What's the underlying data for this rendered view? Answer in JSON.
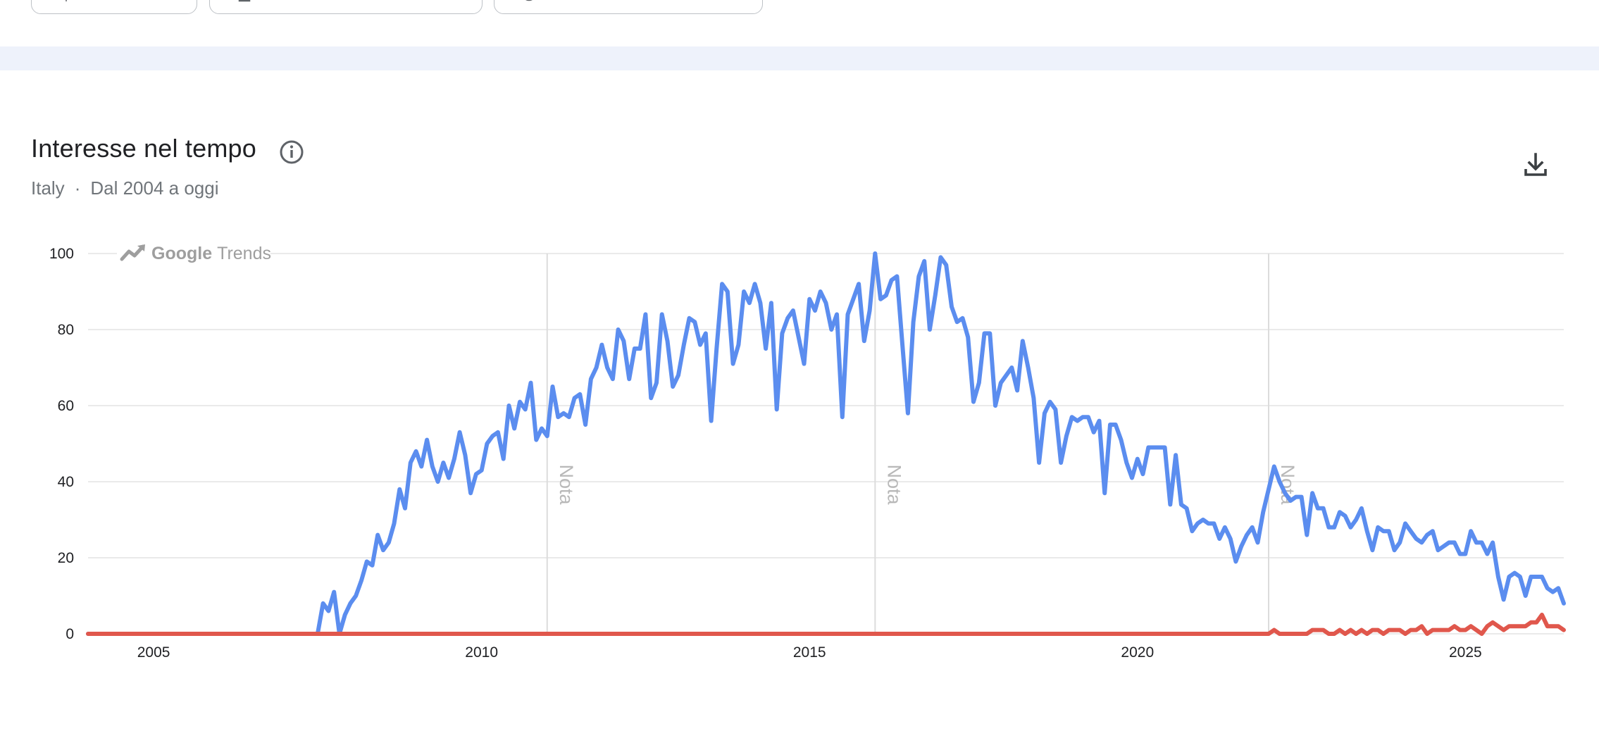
{
  "header": {
    "title": "Interesse nel tempo",
    "region": "Italy",
    "separator": "·",
    "period": "Dal 2004 a oggi"
  },
  "watermark": {
    "brand": "Google",
    "product": "Trends"
  },
  "icons": {
    "info": "info-icon",
    "download": "download-icon",
    "watermark": "trending-up-icon"
  },
  "colors": {
    "series_blue": "#5b8def",
    "series_red": "#e0574c",
    "band": "#eef2fb"
  },
  "chart_data": {
    "type": "line",
    "xlabel": "",
    "ylabel": "",
    "ylim": [
      0,
      100
    ],
    "xlim": [
      "2004-01",
      "2026-07"
    ],
    "yticks": [
      0,
      20,
      40,
      60,
      80,
      100
    ],
    "xticks": [
      "2005",
      "2010",
      "2015",
      "2020",
      "2025"
    ],
    "grid": true,
    "annotations": [
      {
        "text": "Nota",
        "x": "2011-01"
      },
      {
        "text": "Nota",
        "x": "2016-01"
      },
      {
        "text": "Nota",
        "x": "2022-01"
      }
    ],
    "series": [
      {
        "color": "#5b8def",
        "points": [
          [
            "2004-01",
            0
          ],
          [
            "2007-07",
            0
          ],
          [
            "2007-08",
            8
          ],
          [
            "2007-09",
            6
          ],
          [
            "2007-10",
            11
          ],
          [
            "2007-11",
            0
          ],
          [
            "2007-12",
            5
          ],
          [
            "2008-01",
            8
          ],
          [
            "2008-02",
            10
          ],
          [
            "2008-03",
            14
          ],
          [
            "2008-04",
            19
          ],
          [
            "2008-05",
            18
          ],
          [
            "2008-06",
            26
          ],
          [
            "2008-07",
            22
          ],
          [
            "2008-08",
            24
          ],
          [
            "2008-09",
            29
          ],
          [
            "2008-10",
            38
          ],
          [
            "2008-11",
            33
          ],
          [
            "2008-12",
            45
          ],
          [
            "2009-01",
            48
          ],
          [
            "2009-02",
            44
          ],
          [
            "2009-03",
            51
          ],
          [
            "2009-04",
            44
          ],
          [
            "2009-05",
            40
          ],
          [
            "2009-06",
            45
          ],
          [
            "2009-07",
            41
          ],
          [
            "2009-08",
            46
          ],
          [
            "2009-09",
            53
          ],
          [
            "2009-10",
            47
          ],
          [
            "2009-11",
            37
          ],
          [
            "2009-12",
            42
          ],
          [
            "2010-01",
            43
          ],
          [
            "2010-02",
            50
          ],
          [
            "2010-03",
            52
          ],
          [
            "2010-04",
            53
          ],
          [
            "2010-05",
            46
          ],
          [
            "2010-06",
            60
          ],
          [
            "2010-07",
            54
          ],
          [
            "2010-08",
            61
          ],
          [
            "2010-09",
            59
          ],
          [
            "2010-10",
            66
          ],
          [
            "2010-11",
            51
          ],
          [
            "2010-12",
            54
          ],
          [
            "2011-01",
            52
          ],
          [
            "2011-02",
            65
          ],
          [
            "2011-03",
            57
          ],
          [
            "2011-04",
            58
          ],
          [
            "2011-05",
            57
          ],
          [
            "2011-06",
            62
          ],
          [
            "2011-07",
            63
          ],
          [
            "2011-08",
            55
          ],
          [
            "2011-09",
            67
          ],
          [
            "2011-10",
            70
          ],
          [
            "2011-11",
            76
          ],
          [
            "2011-12",
            70
          ],
          [
            "2012-01",
            67
          ],
          [
            "2012-02",
            80
          ],
          [
            "2012-03",
            77
          ],
          [
            "2012-04",
            67
          ],
          [
            "2012-05",
            75
          ],
          [
            "2012-06",
            75
          ],
          [
            "2012-07",
            84
          ],
          [
            "2012-08",
            62
          ],
          [
            "2012-09",
            66
          ],
          [
            "2012-10",
            84
          ],
          [
            "2012-11",
            77
          ],
          [
            "2012-12",
            65
          ],
          [
            "2013-01",
            68
          ],
          [
            "2013-02",
            76
          ],
          [
            "2013-03",
            83
          ],
          [
            "2013-04",
            82
          ],
          [
            "2013-05",
            76
          ],
          [
            "2013-06",
            79
          ],
          [
            "2013-07",
            56
          ],
          [
            "2013-08",
            75
          ],
          [
            "2013-09",
            92
          ],
          [
            "2013-10",
            90
          ],
          [
            "2013-11",
            71
          ],
          [
            "2013-12",
            76
          ],
          [
            "2014-01",
            90
          ],
          [
            "2014-02",
            87
          ],
          [
            "2014-03",
            92
          ],
          [
            "2014-04",
            87
          ],
          [
            "2014-05",
            75
          ],
          [
            "2014-06",
            87
          ],
          [
            "2014-07",
            59
          ],
          [
            "2014-08",
            79
          ],
          [
            "2014-09",
            83
          ],
          [
            "2014-10",
            85
          ],
          [
            "2014-11",
            78
          ],
          [
            "2014-12",
            71
          ],
          [
            "2015-01",
            88
          ],
          [
            "2015-02",
            85
          ],
          [
            "2015-03",
            90
          ],
          [
            "2015-04",
            87
          ],
          [
            "2015-05",
            80
          ],
          [
            "2015-06",
            84
          ],
          [
            "2015-07",
            57
          ],
          [
            "2015-08",
            84
          ],
          [
            "2015-09",
            88
          ],
          [
            "2015-10",
            92
          ],
          [
            "2015-11",
            77
          ],
          [
            "2015-12",
            85
          ],
          [
            "2016-01",
            100
          ],
          [
            "2016-02",
            88
          ],
          [
            "2016-03",
            89
          ],
          [
            "2016-04",
            93
          ],
          [
            "2016-05",
            94
          ],
          [
            "2016-06",
            76
          ],
          [
            "2016-07",
            58
          ],
          [
            "2016-08",
            82
          ],
          [
            "2016-09",
            94
          ],
          [
            "2016-10",
            98
          ],
          [
            "2016-11",
            80
          ],
          [
            "2016-12",
            89
          ],
          [
            "2017-01",
            99
          ],
          [
            "2017-02",
            97
          ],
          [
            "2017-03",
            86
          ],
          [
            "2017-04",
            82
          ],
          [
            "2017-05",
            83
          ],
          [
            "2017-06",
            78
          ],
          [
            "2017-07",
            61
          ],
          [
            "2017-08",
            66
          ],
          [
            "2017-09",
            79
          ],
          [
            "2017-10",
            79
          ],
          [
            "2017-11",
            60
          ],
          [
            "2017-12",
            66
          ],
          [
            "2018-01",
            68
          ],
          [
            "2018-02",
            70
          ],
          [
            "2018-03",
            64
          ],
          [
            "2018-04",
            77
          ],
          [
            "2018-05",
            70
          ],
          [
            "2018-06",
            62
          ],
          [
            "2018-07",
            45
          ],
          [
            "2018-08",
            58
          ],
          [
            "2018-09",
            61
          ],
          [
            "2018-10",
            59
          ],
          [
            "2018-11",
            45
          ],
          [
            "2018-12",
            52
          ],
          [
            "2019-01",
            57
          ],
          [
            "2019-02",
            56
          ],
          [
            "2019-03",
            57
          ],
          [
            "2019-04",
            57
          ],
          [
            "2019-05",
            53
          ],
          [
            "2019-06",
            56
          ],
          [
            "2019-07",
            37
          ],
          [
            "2019-08",
            55
          ],
          [
            "2019-09",
            55
          ],
          [
            "2019-10",
            51
          ],
          [
            "2019-11",
            45
          ],
          [
            "2019-12",
            41
          ],
          [
            "2020-01",
            46
          ],
          [
            "2020-02",
            42
          ],
          [
            "2020-03",
            49
          ],
          [
            "2020-04",
            49
          ],
          [
            "2020-05",
            49
          ],
          [
            "2020-06",
            49
          ],
          [
            "2020-07",
            34
          ],
          [
            "2020-08",
            47
          ],
          [
            "2020-09",
            34
          ],
          [
            "2020-10",
            33
          ],
          [
            "2020-11",
            27
          ],
          [
            "2020-12",
            29
          ],
          [
            "2021-01",
            30
          ],
          [
            "2021-02",
            29
          ],
          [
            "2021-03",
            29
          ],
          [
            "2021-04",
            25
          ],
          [
            "2021-05",
            28
          ],
          [
            "2021-06",
            25
          ],
          [
            "2021-07",
            19
          ],
          [
            "2021-08",
            23
          ],
          [
            "2021-09",
            26
          ],
          [
            "2021-10",
            28
          ],
          [
            "2021-11",
            24
          ],
          [
            "2021-12",
            32
          ],
          [
            "2022-01",
            38
          ],
          [
            "2022-02",
            44
          ],
          [
            "2022-03",
            40
          ],
          [
            "2022-04",
            37
          ],
          [
            "2022-05",
            35
          ],
          [
            "2022-06",
            36
          ],
          [
            "2022-07",
            36
          ],
          [
            "2022-08",
            26
          ],
          [
            "2022-09",
            37
          ],
          [
            "2022-10",
            33
          ],
          [
            "2022-11",
            33
          ],
          [
            "2022-12",
            28
          ],
          [
            "2023-01",
            28
          ],
          [
            "2023-02",
            32
          ],
          [
            "2023-03",
            31
          ],
          [
            "2023-04",
            28
          ],
          [
            "2023-05",
            30
          ],
          [
            "2023-06",
            33
          ],
          [
            "2023-07",
            27
          ],
          [
            "2023-08",
            22
          ],
          [
            "2023-09",
            28
          ],
          [
            "2023-10",
            27
          ],
          [
            "2023-11",
            27
          ],
          [
            "2023-12",
            22
          ],
          [
            "2024-01",
            24
          ],
          [
            "2024-02",
            29
          ],
          [
            "2024-03",
            27
          ],
          [
            "2024-04",
            25
          ],
          [
            "2024-05",
            24
          ],
          [
            "2024-06",
            26
          ],
          [
            "2024-07",
            27
          ],
          [
            "2024-08",
            22
          ],
          [
            "2024-09",
            23
          ],
          [
            "2024-10",
            24
          ],
          [
            "2024-11",
            24
          ],
          [
            "2024-12",
            21
          ],
          [
            "2025-01",
            21
          ],
          [
            "2025-02",
            27
          ],
          [
            "2025-03",
            24
          ],
          [
            "2025-04",
            24
          ],
          [
            "2025-05",
            21
          ],
          [
            "2025-06",
            24
          ],
          [
            "2025-07",
            15
          ],
          [
            "2025-08",
            9
          ],
          [
            "2025-09",
            15
          ],
          [
            "2025-10",
            16
          ],
          [
            "2025-11",
            15
          ],
          [
            "2025-12",
            10
          ],
          [
            "2026-01",
            15
          ],
          [
            "2026-02",
            15
          ],
          [
            "2026-03",
            15
          ],
          [
            "2026-04",
            12
          ],
          [
            "2026-05",
            11
          ],
          [
            "2026-06",
            12
          ],
          [
            "2026-07",
            8
          ]
        ]
      },
      {
        "color": "#e0574c",
        "points": [
          [
            "2004-01",
            0
          ],
          [
            "2022-01",
            0
          ],
          [
            "2022-02",
            1
          ],
          [
            "2022-03",
            0
          ],
          [
            "2022-04",
            0
          ],
          [
            "2022-05",
            0
          ],
          [
            "2022-06",
            0
          ],
          [
            "2022-07",
            0
          ],
          [
            "2022-08",
            0
          ],
          [
            "2022-09",
            1
          ],
          [
            "2022-10",
            1
          ],
          [
            "2022-11",
            1
          ],
          [
            "2022-12",
            0
          ],
          [
            "2023-01",
            0
          ],
          [
            "2023-02",
            1
          ],
          [
            "2023-03",
            0
          ],
          [
            "2023-04",
            1
          ],
          [
            "2023-05",
            0
          ],
          [
            "2023-06",
            1
          ],
          [
            "2023-07",
            0
          ],
          [
            "2023-08",
            1
          ],
          [
            "2023-09",
            1
          ],
          [
            "2023-10",
            0
          ],
          [
            "2023-11",
            1
          ],
          [
            "2023-12",
            1
          ],
          [
            "2024-01",
            1
          ],
          [
            "2024-02",
            0
          ],
          [
            "2024-03",
            1
          ],
          [
            "2024-04",
            1
          ],
          [
            "2024-05",
            2
          ],
          [
            "2024-06",
            0
          ],
          [
            "2024-07",
            1
          ],
          [
            "2024-08",
            1
          ],
          [
            "2024-09",
            1
          ],
          [
            "2024-10",
            1
          ],
          [
            "2024-11",
            2
          ],
          [
            "2024-12",
            1
          ],
          [
            "2025-01",
            1
          ],
          [
            "2025-02",
            2
          ],
          [
            "2025-03",
            1
          ],
          [
            "2025-04",
            0
          ],
          [
            "2025-05",
            2
          ],
          [
            "2025-06",
            3
          ],
          [
            "2025-07",
            2
          ],
          [
            "2025-08",
            1
          ],
          [
            "2025-09",
            2
          ],
          [
            "2025-10",
            2
          ],
          [
            "2025-11",
            2
          ],
          [
            "2025-12",
            2
          ],
          [
            "2026-01",
            3
          ],
          [
            "2026-02",
            3
          ],
          [
            "2026-03",
            5
          ],
          [
            "2026-04",
            2
          ],
          [
            "2026-05",
            2
          ],
          [
            "2026-06",
            2
          ],
          [
            "2026-07",
            1
          ]
        ]
      }
    ]
  }
}
